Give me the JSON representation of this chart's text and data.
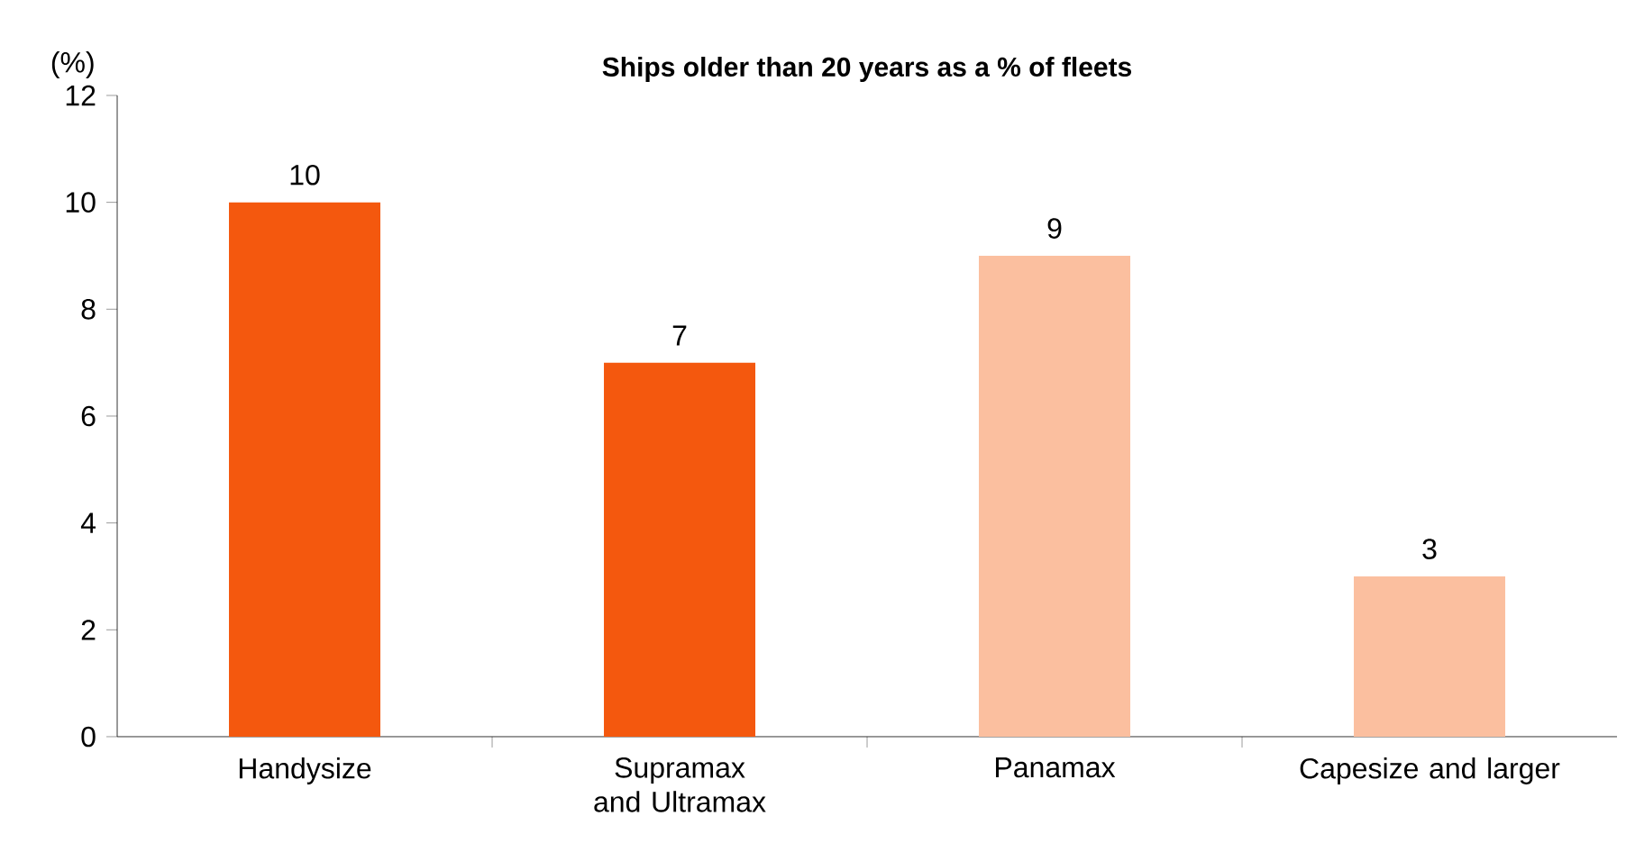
{
  "chart_data": {
    "type": "bar",
    "title": "Ships older than 20 years as a % of fleets",
    "ylabel": "(%)",
    "categories": [
      "Handysize",
      "Supramax and Ultramax",
      "Panamax",
      "Capesize and larger"
    ],
    "values": [
      10,
      7,
      9,
      3
    ],
    "colors": [
      "#f4580e",
      "#f4580e",
      "#fbbf9f",
      "#fbbf9f"
    ],
    "ylim": [
      0,
      12
    ],
    "yticks": [
      0,
      2,
      4,
      6,
      8,
      10,
      12
    ],
    "data_labels": true
  }
}
